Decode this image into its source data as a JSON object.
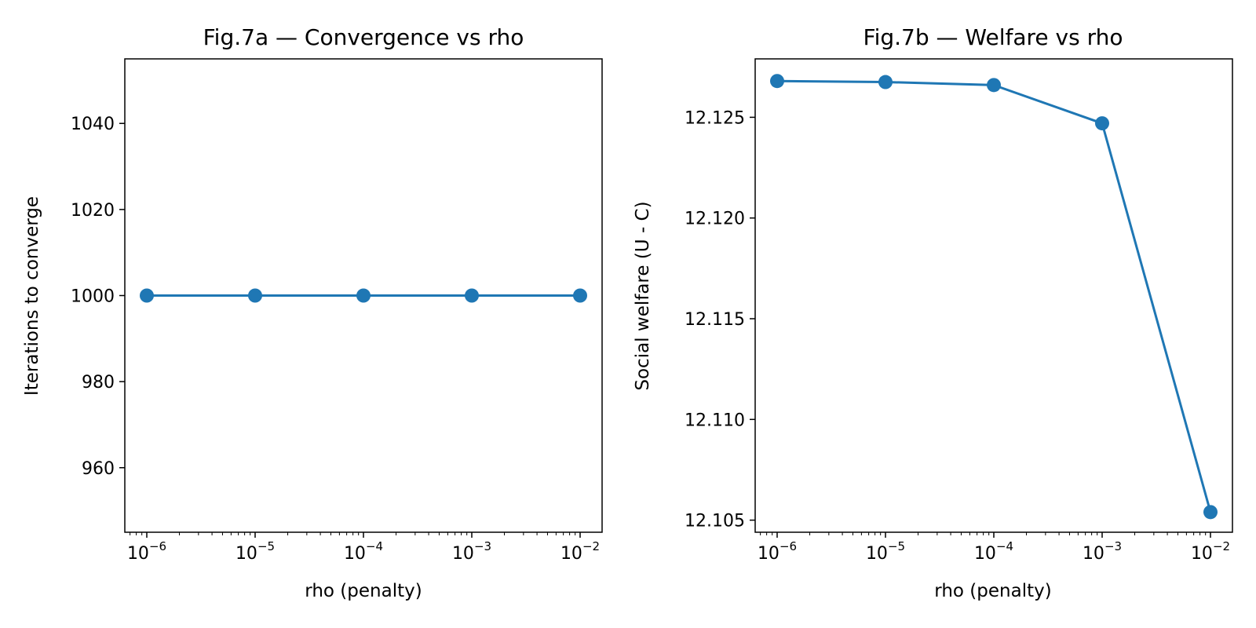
{
  "chart_data": [
    {
      "type": "line",
      "title": "Fig.7a — Convergence vs rho",
      "xlabel": "rho (penalty)",
      "ylabel": "Iterations to converge",
      "xscale": "log",
      "xlim": [
        1e-06,
        0.01
      ],
      "ylim": [
        945,
        1055
      ],
      "xticks": [
        {
          "base": "10",
          "exp": "−6",
          "value": 1e-06
        },
        {
          "base": "10",
          "exp": "−5",
          "value": 1e-05
        },
        {
          "base": "10",
          "exp": "−4",
          "value": 0.0001
        },
        {
          "base": "10",
          "exp": "−3",
          "value": 0.001
        },
        {
          "base": "10",
          "exp": "−2",
          "value": 0.01
        }
      ],
      "yticks": [
        {
          "label": "960",
          "value": 960
        },
        {
          "label": "980",
          "value": 980
        },
        {
          "label": "1000",
          "value": 1000
        },
        {
          "label": "1020",
          "value": 1020
        },
        {
          "label": "1040",
          "value": 1040
        }
      ],
      "color": "#1f77b4",
      "x": [
        1e-06,
        1e-05,
        0.0001,
        0.001,
        0.01
      ],
      "y": [
        1000,
        1000,
        1000,
        1000,
        1000
      ],
      "grid": false
    },
    {
      "type": "line",
      "title": "Fig.7b — Welfare vs rho",
      "xlabel": "rho (penalty)",
      "ylabel": "Social welfare (U - C)",
      "xscale": "log",
      "xlim": [
        1e-06,
        0.01
      ],
      "ylim": [
        12.1044,
        12.1279
      ],
      "xticks": [
        {
          "base": "10",
          "exp": "−6",
          "value": 1e-06
        },
        {
          "base": "10",
          "exp": "−5",
          "value": 1e-05
        },
        {
          "base": "10",
          "exp": "−4",
          "value": 0.0001
        },
        {
          "base": "10",
          "exp": "−3",
          "value": 0.001
        },
        {
          "base": "10",
          "exp": "−2",
          "value": 0.01
        }
      ],
      "yticks": [
        {
          "label": "12.105",
          "value": 12.105
        },
        {
          "label": "12.110",
          "value": 12.11
        },
        {
          "label": "12.115",
          "value": 12.115
        },
        {
          "label": "12.120",
          "value": 12.12
        },
        {
          "label": "12.125",
          "value": 12.125
        }
      ],
      "color": "#1f77b4",
      "x": [
        1e-06,
        1e-05,
        0.0001,
        0.001,
        0.01
      ],
      "y": [
        12.1268,
        12.12675,
        12.1266,
        12.1247,
        12.1054
      ],
      "grid": false
    }
  ]
}
